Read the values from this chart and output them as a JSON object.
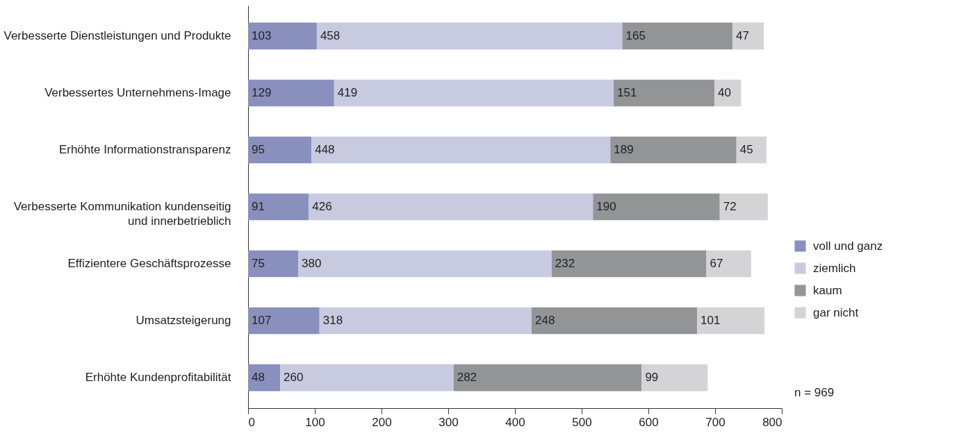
{
  "chart_data": {
    "type": "bar",
    "orientation": "horizontal",
    "stacked": true,
    "data_labels": true,
    "legend": "right",
    "grid": false,
    "categories": [
      "Verbesserte Dienstleistungen und Produkte",
      "Verbessertes Unternehmens-Image",
      "Erhöhte Informationstransparenz",
      "Verbesserte Kommunikation kundenseitig und innerbetrieblich",
      "Effizientere Geschäftsprozesse",
      "Umsatzsteigerung",
      "Erhöhte Kundenprofitabilität"
    ],
    "series": [
      {
        "name": "voll und ganz",
        "color": "#8a90bd",
        "values": [
          103,
          129,
          95,
          91,
          75,
          107,
          48
        ]
      },
      {
        "name": "ziemlich",
        "color": "#c8cadf",
        "values": [
          458,
          419,
          448,
          426,
          380,
          318,
          260
        ]
      },
      {
        "name": "kaum",
        "color": "#939496",
        "values": [
          165,
          151,
          189,
          190,
          232,
          248,
          282
        ]
      },
      {
        "name": "gar nicht",
        "color": "#d4d4d6",
        "values": [
          47,
          40,
          45,
          72,
          67,
          101,
          99
        ]
      }
    ],
    "xlim": [
      0,
      800
    ],
    "xticks": [
      0,
      100,
      200,
      300,
      400,
      500,
      600,
      700,
      800
    ],
    "annotations": [
      "n = 969"
    ]
  }
}
